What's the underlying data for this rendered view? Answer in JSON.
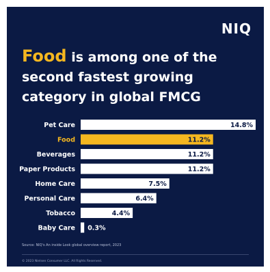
{
  "brand": "NIQ",
  "headline": {
    "accent": "Food",
    "rest_line1": " is among one of the",
    "line2": "second fastest growing",
    "line3": "category in global FMCG"
  },
  "chart_data": {
    "type": "bar",
    "orientation": "horizontal",
    "categories": [
      "Pet Care",
      "Food",
      "Beverages",
      "Paper Products",
      "Home Care",
      "Personal Care",
      "Tobacco",
      "Baby Care"
    ],
    "values": [
      14.8,
      11.2,
      11.2,
      11.2,
      7.5,
      6.4,
      4.4,
      0.3
    ],
    "value_labels": [
      "14.8%",
      "11.2%",
      "11.2%",
      "11.2%",
      "7.5%",
      "6.4%",
      "4.4%",
      "0.3%"
    ],
    "highlight": "Food",
    "colors": {
      "bar": "#ffffff",
      "highlight": "#f5b720",
      "label": "#0b1a44",
      "category": "#ffffff"
    },
    "xlim": [
      0,
      14.8
    ],
    "grid": false,
    "legend": "none"
  },
  "source": "Source: NIQ's An inside Look global overview report, 2023",
  "copyright": "© 2023 Nielsen Consumer LLC. All Rights Reserved.",
  "colors": {
    "background": "#0b1a44",
    "accent": "#f5b720",
    "text": "#ffffff"
  }
}
